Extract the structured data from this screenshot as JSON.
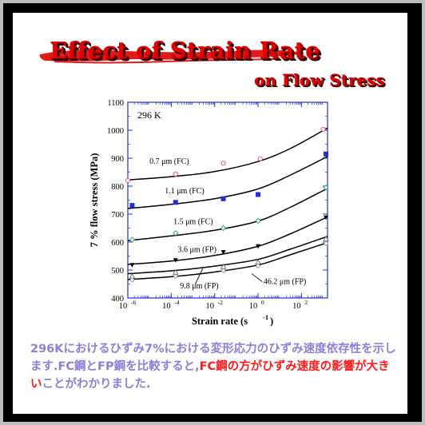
{
  "slide": {
    "title_line1": "Effect of Strain Rate",
    "title_line2": "on Flow Stress",
    "description": [
      {
        "text": "296Kにおけるひずみ7%における変形応力のひずみ速度依存性を示します.FC鋼とFP鋼を比較すると,",
        "red": false
      },
      {
        "text": "FC鋼の方がひずみ速度の影響が大きい",
        "red": true
      },
      {
        "text": "ことがわかりました.",
        "red": false
      }
    ]
  },
  "chart_data": {
    "type": "line",
    "condition_label": "296 K",
    "xlabel": "Strain rate (s",
    "xlabel_sup": "-1",
    "xlabel_end": ")",
    "ylabel": "7 % flow stress (MPa)",
    "xscale": "log",
    "xlim": [
      -6,
      3.2
    ],
    "ylim": [
      400,
      1100
    ],
    "x_ticks": [
      {
        "v": -6,
        "base": "10",
        "exp": "-6"
      },
      {
        "v": -4,
        "base": "10",
        "exp": "-4"
      },
      {
        "v": -2,
        "base": "10",
        "exp": "-2"
      },
      {
        "v": 0,
        "base": "10",
        "exp": "0"
      },
      {
        "v": 2,
        "base": "10",
        "exp": "2"
      }
    ],
    "y_ticks": [
      400,
      500,
      600,
      700,
      800,
      900,
      1000,
      1100
    ],
    "series": [
      {
        "name": "0.7 μm (FC)",
        "marker": "open-circle",
        "color": "#e06070",
        "points": [
          [
            -6,
            820
          ],
          [
            -3.8,
            843
          ],
          [
            -1.6,
            882
          ],
          [
            0.1,
            898
          ],
          [
            3.0,
            1003
          ]
        ],
        "fit": [
          [
            -6,
            822
          ],
          [
            -4,
            834
          ],
          [
            -2,
            852
          ],
          [
            0,
            888
          ],
          [
            1.5,
            935
          ],
          [
            3.2,
            1008
          ]
        ]
      },
      {
        "name": "1.1 μm (FC)",
        "marker": "filled-square",
        "color": "#1f2fd0",
        "points": [
          [
            -5.8,
            731
          ],
          [
            -3.8,
            742
          ],
          [
            -1.6,
            755
          ],
          [
            0,
            770
          ],
          [
            3.2,
            915
          ]
        ],
        "fit": [
          [
            -6,
            720
          ],
          [
            -4,
            735
          ],
          [
            -2,
            755
          ],
          [
            0,
            790
          ],
          [
            1.5,
            840
          ],
          [
            3.2,
            906
          ]
        ]
      },
      {
        "name": "1.5 μm (FC)",
        "marker": "open-diamond",
        "color": "#2aa86a",
        "points": [
          [
            -5.8,
            608
          ],
          [
            -3.8,
            632
          ],
          [
            -1.6,
            650
          ],
          [
            0,
            676
          ],
          [
            3.2,
            795
          ]
        ],
        "fit": [
          [
            -6,
            605
          ],
          [
            -4,
            622
          ],
          [
            -2,
            642
          ],
          [
            0,
            675
          ],
          [
            1.5,
            725
          ],
          [
            3.2,
            792
          ]
        ]
      },
      {
        "name": "3.6 μm (FP)",
        "marker": "filled-triangle-down",
        "color": "#000000",
        "points": [
          [
            -5.8,
            518
          ],
          [
            -3.8,
            535
          ],
          [
            -1.6,
            564
          ],
          [
            0,
            585
          ],
          [
            3.2,
            688
          ]
        ],
        "fit": [
          [
            -6,
            520
          ],
          [
            -4,
            532
          ],
          [
            -2,
            552
          ],
          [
            0,
            585
          ],
          [
            1.5,
            630
          ],
          [
            3.2,
            690
          ]
        ]
      },
      {
        "name": "9.8 μm (FP)",
        "marker": "open-triangle",
        "color": "#666666",
        "points": [
          [
            -5.8,
            478
          ],
          [
            -3.8,
            492
          ],
          [
            -1.6,
            512
          ],
          [
            0,
            528
          ],
          [
            3.2,
            612
          ]
        ],
        "fit": [
          [
            -6,
            487
          ],
          [
            -4,
            497
          ],
          [
            -2,
            514
          ],
          [
            0,
            538
          ],
          [
            1.5,
            575
          ],
          [
            3.2,
            620
          ]
        ]
      },
      {
        "name": "46.2 μm (FP)",
        "marker": "open-circle-small",
        "color": "#888888",
        "points": [
          [
            -5.8,
            465
          ],
          [
            -3.8,
            478
          ],
          [
            -1.6,
            498
          ],
          [
            0,
            515
          ],
          [
            3.2,
            595
          ]
        ],
        "fit": [
          [
            -6,
            466
          ],
          [
            -4,
            476
          ],
          [
            -2,
            493
          ],
          [
            0,
            518
          ],
          [
            1.5,
            555
          ],
          [
            3.2,
            598
          ]
        ]
      }
    ],
    "annotations": [
      {
        "text": "0.7 μm (FC)",
        "x": -5.0,
        "y": 880
      },
      {
        "text": "1.1 μm (FC)",
        "x": -4.3,
        "y": 775
      },
      {
        "text": "1.5 μm (FC)",
        "x": -3.9,
        "y": 665
      },
      {
        "text": "3.6 μm (FP)",
        "x": -3.7,
        "y": 565
      },
      {
        "text": "9.8 μm (FP)",
        "x": -3.6,
        "y": 435
      },
      {
        "text": "46.2 μm (FP)",
        "x": 0.25,
        "y": 450
      }
    ]
  }
}
